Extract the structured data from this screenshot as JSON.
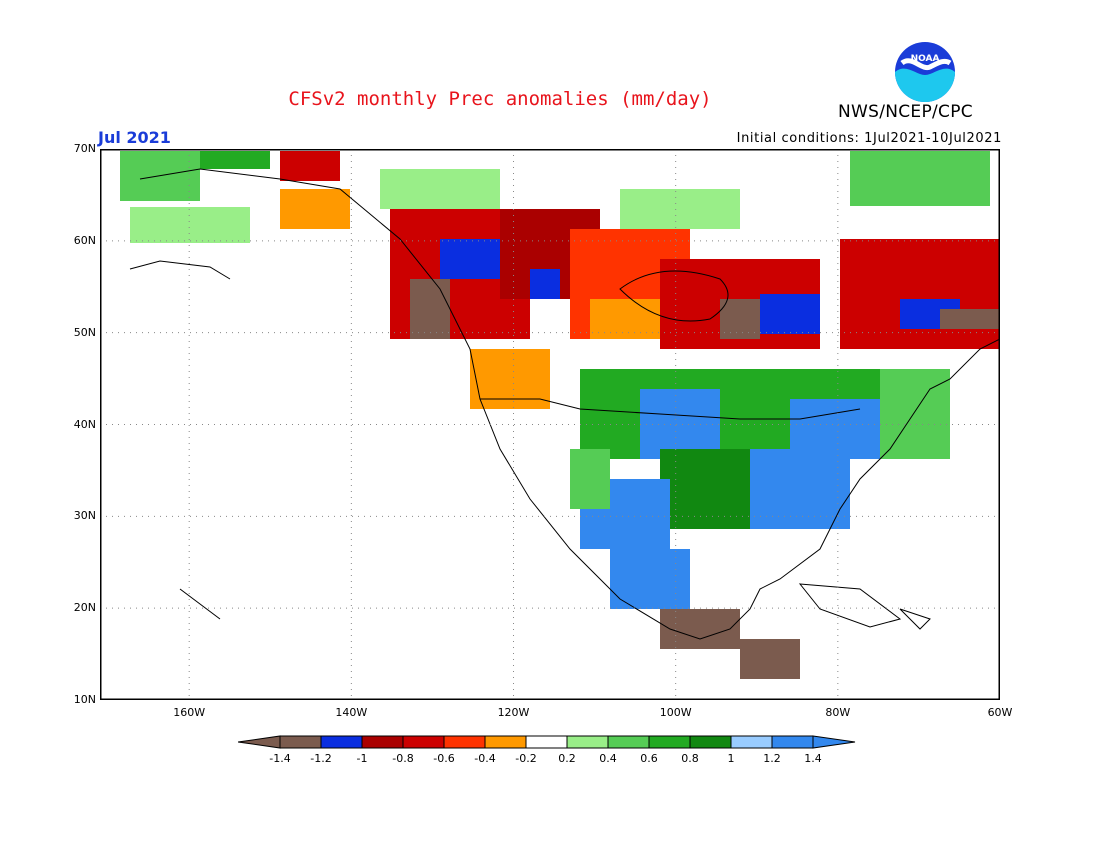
{
  "header": {
    "title": "CFSv2 monthly Prec anomalies (mm/day)",
    "agency": "NWS/NCEP/CPC",
    "logo_text": "NOAA",
    "month": "Jul 2021",
    "initial_conditions": "Initial conditions: 1Jul2021-10Jul2021"
  },
  "map": {
    "lat_labels": [
      "70N",
      "60N",
      "50N",
      "40N",
      "30N",
      "20N",
      "10N"
    ],
    "lon_labels": [
      "160W",
      "140W",
      "120W",
      "100W",
      "80W",
      "60W"
    ],
    "lat_range": [
      10,
      70
    ],
    "lon_range": [
      -171,
      -60
    ]
  },
  "colorbar": {
    "ticks": [
      "-1.4",
      "-1.2",
      "-1",
      "-0.8",
      "-0.6",
      "-0.4",
      "-0.2",
      "0.2",
      "0.4",
      "0.6",
      "0.8",
      "1",
      "1.2",
      "1.4"
    ],
    "colors": [
      "#7b5b4e",
      "#7b5b4e",
      "#0a2ee0",
      "#aa0000",
      "#cc0000",
      "#ff3300",
      "#ff9900",
      "#ffffff",
      "#99ee88",
      "#55cc55",
      "#22aa22",
      "#118811",
      "#99ccff",
      "#3388ee",
      "#3388ee"
    ]
  }
}
